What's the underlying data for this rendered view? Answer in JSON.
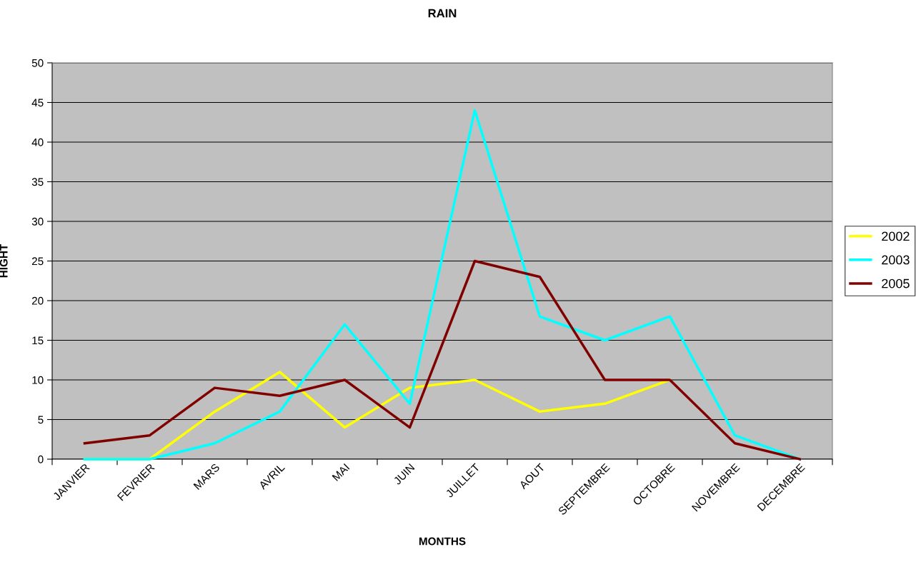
{
  "chart_data": {
    "type": "line",
    "title": "RAIN",
    "xlabel": "MONTHS",
    "ylabel": "HIGHT",
    "categories": [
      "JANVIER",
      "FEVRIER",
      "MARS",
      "AVRIL",
      "MAI",
      "JUIN",
      "JUILLET",
      "AOUT",
      "SEPTEMBRE",
      "OCTOBRE",
      "NOVEMBRE",
      "DECEMBRE"
    ],
    "series": [
      {
        "name": "2002",
        "color": "#ffff00",
        "values": [
          0,
          0,
          6,
          11,
          4,
          9,
          10,
          6,
          7,
          10,
          null,
          null
        ]
      },
      {
        "name": "2003",
        "color": "#00ffff",
        "values": [
          0,
          0,
          2,
          6,
          17,
          7,
          44,
          18,
          15,
          18,
          3,
          0
        ]
      },
      {
        "name": "2005",
        "color": "#800000",
        "values": [
          2,
          3,
          9,
          8,
          10,
          4,
          25,
          23,
          10,
          10,
          2,
          0
        ]
      }
    ],
    "ylim": [
      0,
      50
    ],
    "yticks": [
      0,
      5,
      10,
      15,
      20,
      25,
      30,
      35,
      40,
      45,
      50
    ],
    "grid": "y",
    "legend": "right"
  }
}
